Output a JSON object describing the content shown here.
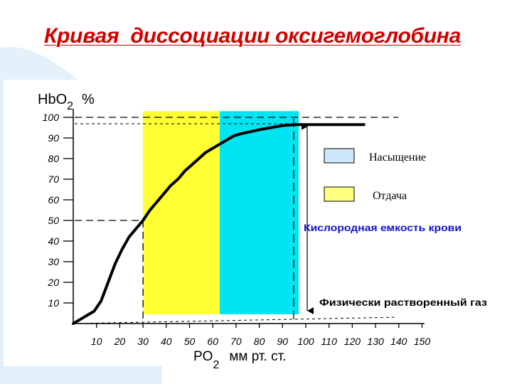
{
  "title": "Кривая  диссоциации оксигемоглобина",
  "colors": {
    "title": "#d00000",
    "saturation": "#00e5f2",
    "release": "#ffff33",
    "annotation_blue": "#1010c8"
  },
  "chart_data": {
    "type": "line",
    "xlabel": {
      "main": "PO",
      "sub": "2",
      "unit": "мм рт. ст."
    },
    "ylabel": {
      "main": "HbO",
      "sub": "2",
      "unit": "%"
    },
    "xlim": [
      0,
      150
    ],
    "ylim": [
      0,
      100
    ],
    "x_ticks": [
      10,
      20,
      30,
      40,
      50,
      60,
      70,
      80,
      90,
      100,
      110,
      120,
      130,
      140,
      150
    ],
    "y_ticks": [
      10,
      20,
      30,
      40,
      50,
      60,
      70,
      80,
      90,
      100
    ],
    "series": [
      {
        "x": [
          0,
          3,
          6,
          9,
          12,
          15,
          18,
          21,
          24,
          27,
          30,
          33,
          36,
          39,
          42,
          45,
          48,
          51,
          54,
          57,
          60,
          63,
          66,
          69,
          72,
          76,
          80,
          85,
          90,
          95,
          100,
          110,
          120,
          125
        ],
        "y": [
          0,
          2,
          4,
          6,
          11,
          20,
          29,
          36,
          42,
          46,
          50,
          55,
          59,
          63,
          67,
          70,
          74,
          77,
          80,
          83,
          85,
          87,
          89,
          91,
          92,
          93,
          94,
          95,
          96,
          96.5,
          96.5,
          96.5,
          96.5,
          96.5
        ]
      }
    ],
    "bands": [
      {
        "name": "Отдача",
        "x_from": 30,
        "x_to": 63,
        "color": "#ffff33"
      },
      {
        "name": "Насыщение",
        "x_from": 63,
        "x_to": 97,
        "color": "#00e5f2"
      }
    ],
    "legend": [
      {
        "label": "Насыщение",
        "color": "#cce8fb"
      },
      {
        "label": "Отдача",
        "color": "#ffff80"
      }
    ],
    "reference_lines": {
      "upper_h_y": 100,
      "mid_h_y": 50,
      "mid_v_x": 30,
      "right_v_x": 98,
      "baseline_from": [
        0,
        0
      ],
      "baseline_to": [
        138,
        2
      ]
    },
    "annotations": [
      {
        "text": "Кислородная емкость крови",
        "style": "blue"
      },
      {
        "text": "Физически растворенный газ",
        "style": "black"
      }
    ]
  }
}
